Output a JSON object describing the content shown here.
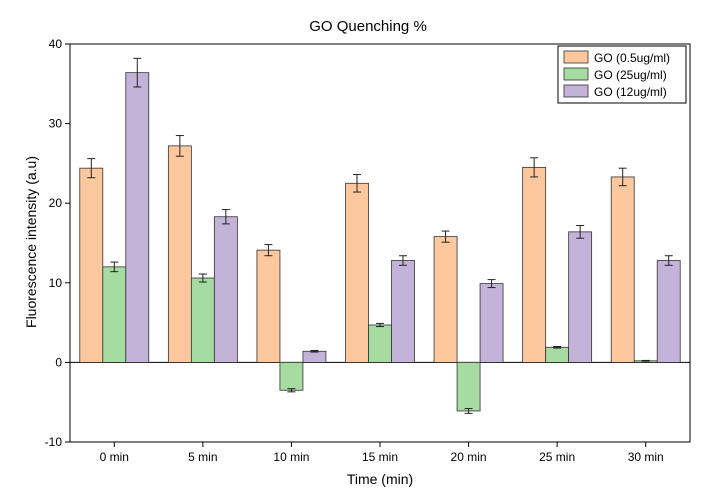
{
  "chart_data": {
    "type": "bar",
    "title": "GO Quenching %",
    "xlabel": "Time (min)",
    "ylabel": "Fluorescence intensity (a.u)",
    "ylim": [
      -10,
      40
    ],
    "yticks": [
      -10,
      0,
      10,
      20,
      30,
      40
    ],
    "categories": [
      "0 min",
      "5 min",
      "10 min",
      "15 min",
      "20 min",
      "25 min",
      "30 min"
    ],
    "legend_position": "top-right",
    "series": [
      {
        "name": "GO (0.5ug/ml)",
        "color": "#fdc89d",
        "values": [
          24.4,
          27.2,
          14.1,
          22.5,
          15.8,
          24.5,
          23.3
        ],
        "errors": [
          1.2,
          1.3,
          0.7,
          1.1,
          0.7,
          1.2,
          1.1
        ]
      },
      {
        "name": "GO (25ug/ml)",
        "color": "#a6dba2",
        "values": [
          12.0,
          10.6,
          -3.5,
          4.7,
          -6.1,
          1.9,
          0.2
        ],
        "errors": [
          0.6,
          0.5,
          0.2,
          0.2,
          0.3,
          0.1,
          0.05
        ]
      },
      {
        "name": "GO (12ug/ml)",
        "color": "#c4b3d9",
        "values": [
          36.4,
          18.3,
          1.4,
          12.8,
          9.9,
          16.4,
          12.8
        ],
        "errors": [
          1.8,
          0.9,
          0.1,
          0.6,
          0.5,
          0.8,
          0.6
        ]
      }
    ]
  }
}
